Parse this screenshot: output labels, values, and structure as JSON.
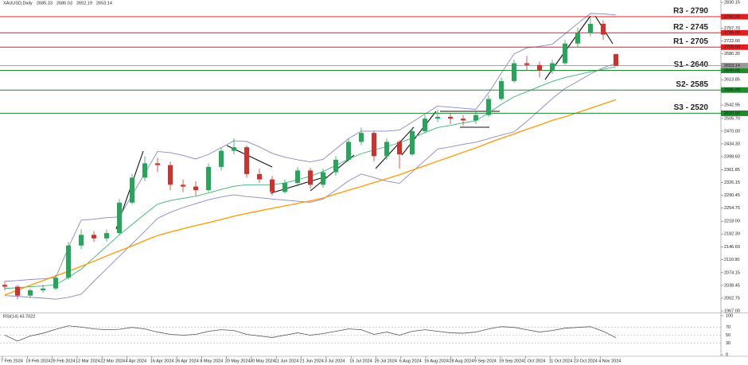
{
  "chart_data": {
    "type": "candlestick",
    "title": "XAUUSD,Daily",
    "header_values": [
      2685.33,
      2686.03,
      2652.19,
      2653.14
    ],
    "ylim": [
      1962.7,
      2836.8
    ],
    "yticks": [
      {
        "value": 2830.15,
        "label": "2830.15"
      },
      {
        "value": 2757.7,
        "label": "2757.70"
      },
      {
        "value": 2722.0,
        "label": "2722.00"
      },
      {
        "value": 2686.3,
        "label": "2686.30"
      },
      {
        "value": 2613.85,
        "label": "2613.85"
      },
      {
        "value": 2542.95,
        "label": "2542.95"
      },
      {
        "value": 2505.7,
        "label": "2505.70"
      },
      {
        "value": 2470.0,
        "label": "2470.00"
      },
      {
        "value": 2434.3,
        "label": "2434.30"
      },
      {
        "value": 2398.6,
        "label": "2398.60"
      },
      {
        "value": 2361.85,
        "label": "2361.85"
      },
      {
        "value": 2326.15,
        "label": "2326.15"
      },
      {
        "value": 2290.45,
        "label": "2290.45"
      },
      {
        "value": 2254.75,
        "label": "2254.75"
      },
      {
        "value": 2218.0,
        "label": "2218.00"
      },
      {
        "value": 2182.3,
        "label": "2182.30"
      },
      {
        "value": 2146.6,
        "label": "2146.60"
      },
      {
        "value": 2110.9,
        "label": "2110.90"
      },
      {
        "value": 2074.15,
        "label": "2074.15"
      },
      {
        "value": 2038.45,
        "label": "2038.45"
      },
      {
        "value": 2002.75,
        "label": "2002.75"
      },
      {
        "value": 1967.0,
        "label": "1967.00"
      }
    ],
    "x_labels": [
      "7 Feb 2024",
      "19 Feb 2024",
      "29 Feb 2024",
      "12 Mar 2024",
      "22 Mar 2024",
      "4 Apr 2024",
      "16 Apr 2024",
      "26 Apr 2024",
      "8 May 2024",
      "20 May 2024",
      "30 May 2024",
      "11 Jun 2024",
      "21 Jun 2024",
      "3 Jul 2024",
      "15 Jul 2024",
      "25 Jul 2024",
      "6 Aug 2024",
      "16 Aug 2024",
      "28 Aug 2024",
      "9 Sep 2024",
      "19 Sep 2024",
      "1 Oct 2024",
      "11 Oct 2024",
      "23 Oct 2024",
      "4 Nov 2024"
    ],
    "candles": {
      "up_color": "#26a65b",
      "down_color": "#d0312d",
      "open": [
        2040,
        2035,
        2010,
        2025,
        2030,
        2060,
        2150,
        2180,
        2170,
        2185,
        2270,
        2340,
        2380,
        2375,
        2320,
        2315,
        2305,
        2370,
        2415,
        2425,
        2350,
        2335,
        2300,
        2325,
        2360,
        2320,
        2355,
        2390,
        2440,
        2465,
        2400,
        2440,
        2405,
        2470,
        2505,
        2510,
        2505,
        2500,
        2515,
        2560,
        2610,
        2660,
        2655,
        2640,
        2660,
        2715,
        2745,
        2770,
        2685.33
      ],
      "high": [
        2050,
        2040,
        2030,
        2040,
        2068,
        2160,
        2195,
        2190,
        2195,
        2280,
        2350,
        2400,
        2395,
        2385,
        2335,
        2330,
        2380,
        2425,
        2450,
        2430,
        2365,
        2345,
        2335,
        2370,
        2368,
        2365,
        2400,
        2450,
        2480,
        2470,
        2450,
        2445,
        2480,
        2515,
        2530,
        2520,
        2515,
        2525,
        2570,
        2620,
        2670,
        2680,
        2665,
        2670,
        2725,
        2760,
        2790,
        2780,
        2686.03
      ],
      "low": [
        2025,
        2000,
        2003,
        2018,
        2025,
        2055,
        2140,
        2160,
        2160,
        2180,
        2265,
        2330,
        2355,
        2305,
        2300,
        2290,
        2300,
        2360,
        2405,
        2340,
        2325,
        2290,
        2295,
        2315,
        2310,
        2312,
        2345,
        2385,
        2430,
        2385,
        2390,
        2365,
        2400,
        2465,
        2495,
        2490,
        2485,
        2490,
        2510,
        2555,
        2605,
        2640,
        2620,
        2630,
        2655,
        2705,
        2735,
        2725,
        2652.19
      ],
      "close": [
        2035,
        2010,
        2025,
        2030,
        2060,
        2150,
        2180,
        2170,
        2185,
        2270,
        2340,
        2380,
        2375,
        2320,
        2315,
        2305,
        2370,
        2415,
        2425,
        2350,
        2335,
        2300,
        2325,
        2360,
        2320,
        2355,
        2390,
        2440,
        2465,
        2400,
        2440,
        2405,
        2470,
        2505,
        2510,
        2505,
        2500,
        2515,
        2560,
        2610,
        2660,
        2655,
        2640,
        2660,
        2715,
        2745,
        2770,
        2740,
        2653.14
      ]
    },
    "series": [
      {
        "color": "#8888c8",
        "values": [
          2050,
          2052,
          2055,
          2057,
          2060,
          2145,
          2221,
          2224,
          2228,
          2230,
          2291,
          2352,
          2413,
          2410,
          2402,
          2392,
          2405,
          2424,
          2443,
          2441,
          2426,
          2408,
          2397,
          2390,
          2384,
          2391,
          2420,
          2449,
          2470,
          2470,
          2470,
          2473,
          2495,
          2518,
          2540,
          2537,
          2534,
          2531,
          2577,
          2632,
          2686,
          2703,
          2707,
          2713,
          2742,
          2771,
          2799,
          2798,
          2795
        ]
      },
      {
        "color": "#8888c8",
        "values": [
          2010,
          2008,
          2005,
          2003,
          2000,
          2005,
          2014,
          2050,
          2085,
          2120,
          2155,
          2190,
          2226,
          2243,
          2256,
          2267,
          2278,
          2286,
          2292,
          2287,
          2284,
          2280,
          2277,
          2274,
          2271,
          2280,
          2305,
          2331,
          2350,
          2340,
          2330,
          2324,
          2356,
          2388,
          2420,
          2426,
          2433,
          2439,
          2449,
          2459,
          2468,
          2497,
          2529,
          2561,
          2589,
          2609,
          2630,
          2647,
          2660
        ]
      },
      {
        "color": "#3cb371",
        "values": [
          2030,
          2032,
          2035,
          2037,
          2040,
          2061,
          2084,
          2116,
          2148,
          2180,
          2209,
          2238,
          2266,
          2276,
          2282,
          2288,
          2297,
          2307,
          2316,
          2320,
          2320,
          2320,
          2325,
          2334,
          2344,
          2357,
          2374,
          2392,
          2407,
          2417,
          2427,
          2437,
          2451,
          2466,
          2480,
          2486,
          2493,
          2499,
          2521,
          2545,
          2566,
          2580,
          2595,
          2609,
          2620,
          2628,
          2636,
          2643,
          2650
        ]
      },
      {
        "color": "#ff9900",
        "values": [
          2012,
          2025,
          2039,
          2052,
          2065,
          2078,
          2092,
          2106,
          2121,
          2135,
          2149,
          2164,
          2178,
          2188,
          2197,
          2206,
          2214,
          2223,
          2232,
          2240,
          2247,
          2254,
          2261,
          2268,
          2275,
          2283,
          2294,
          2305,
          2315,
          2326,
          2337,
          2348,
          2361,
          2373,
          2386,
          2398,
          2411,
          2423,
          2437,
          2450,
          2462,
          2475,
          2487,
          2500,
          2510,
          2522,
          2534,
          2546,
          2558
        ]
      }
    ],
    "levels": [
      {
        "label": "R3 - 2790",
        "value": 2790,
        "box_label": "2790.00",
        "color": "#e02020",
        "text_color": "#7a1010"
      },
      {
        "label": "R2 - 2745",
        "value": 2745,
        "box_label": "2745.00",
        "color": "#e02020",
        "text_color": "#7a1010"
      },
      {
        "label": "R1 - 2705",
        "value": 2705,
        "box_label": "2705.00",
        "color": "#e02020",
        "text_color": "#7a1010"
      },
      {
        "label": "S1 - 2640",
        "value": 2640,
        "box_label": "2640.00",
        "color": "#1f8a2e",
        "text_color": "#145a1e"
      },
      {
        "label": "S2- 2585",
        "value": 2585,
        "box_label": "2585.00",
        "color": "#1f8a2e",
        "text_color": "#145a1e"
      },
      {
        "label": "S3 - 2520",
        "value": 2520,
        "box_label": "2520.00",
        "color": "#1f8a2e",
        "text_color": "#145a1e"
      }
    ],
    "current_price": {
      "value": 2653.14,
      "box_label": "2653.14",
      "color": "#999999"
    },
    "rsi": {
      "label": "RSI(14) 43.7022",
      "color": "#555555",
      "ylim": [
        0,
        100
      ],
      "yticks": [
        0,
        30,
        50,
        70,
        100
      ],
      "values": [
        50,
        35,
        48,
        55,
        65,
        74,
        71,
        66,
        64,
        65,
        70,
        66,
        58,
        52,
        50,
        52,
        60,
        64,
        62,
        52,
        48,
        44,
        50,
        56,
        50,
        54,
        60,
        66,
        64,
        52,
        58,
        50,
        60,
        64,
        60,
        56,
        55,
        58,
        66,
        72,
        70,
        64,
        58,
        62,
        68,
        70,
        72,
        60,
        43.7022
      ]
    }
  }
}
